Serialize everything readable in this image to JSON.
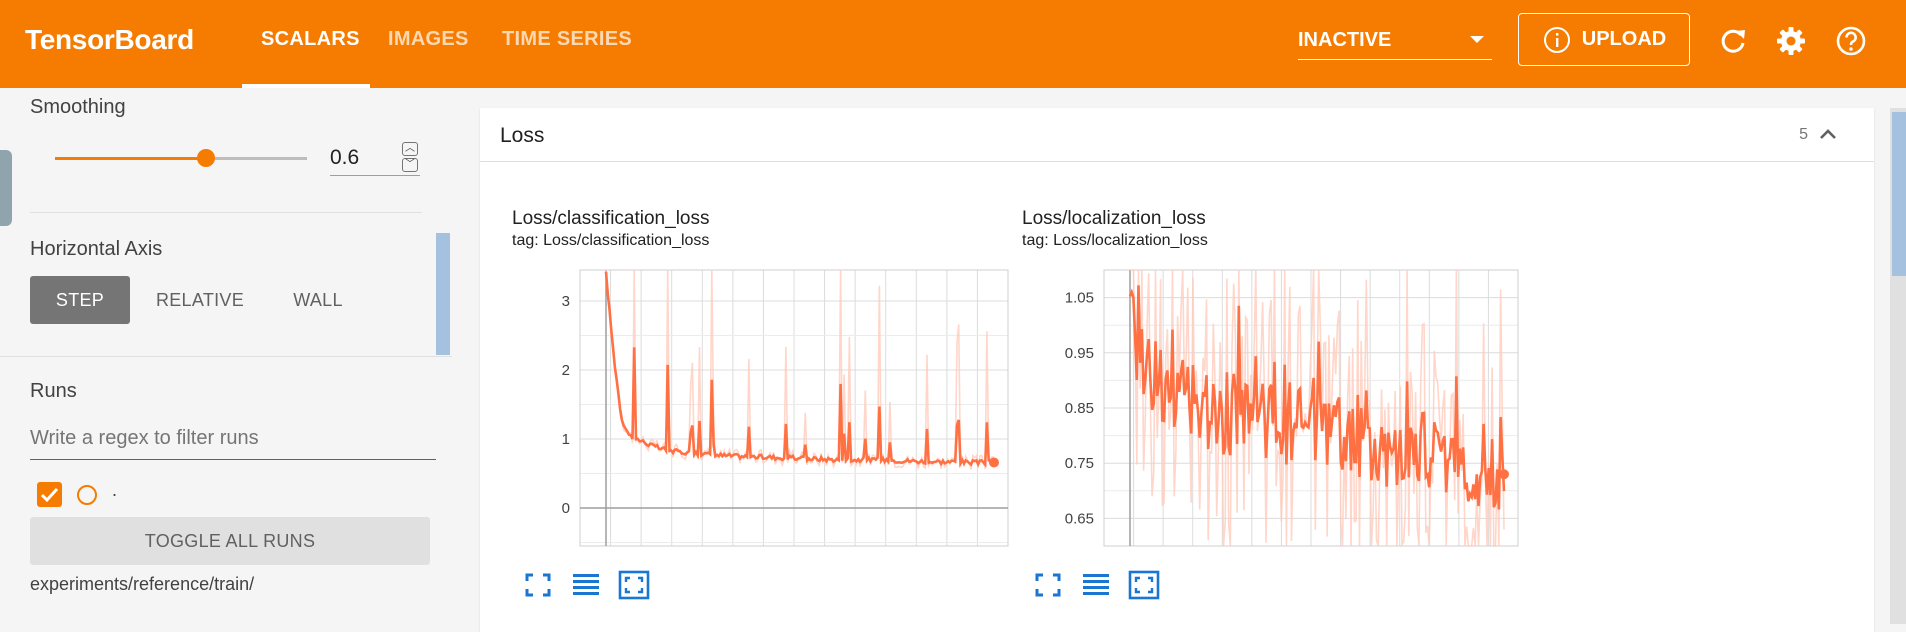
{
  "app": {
    "brand": "TensorBoard"
  },
  "tabs": [
    {
      "label": "SCALARS",
      "active": true
    },
    {
      "label": "IMAGES",
      "active": false
    },
    {
      "label": "TIME SERIES",
      "active": false
    }
  ],
  "header": {
    "run_status": "INACTIVE",
    "upload_label": "UPLOAD",
    "icons": [
      "info-icon",
      "reload-icon",
      "settings-gear-icon",
      "help-icon"
    ]
  },
  "sidebar": {
    "smoothing_label": "Smoothing",
    "smoothing_value": "0.6",
    "smoothing_fraction": 0.6,
    "horizontal_axis_label": "Horizontal Axis",
    "axis_options": [
      {
        "label": "STEP",
        "active": true
      },
      {
        "label": "RELATIVE",
        "active": false
      },
      {
        "label": "WALL",
        "active": false
      }
    ],
    "runs_label": "Runs",
    "runs_filter_placeholder": "Write a regex to filter runs",
    "runs": [
      {
        "name": ".",
        "checked": true
      }
    ],
    "toggle_all_label": "TOGGLE ALL RUNS",
    "run_path": "experiments/reference/train/"
  },
  "main": {
    "group_title": "Loss",
    "group_count": "5"
  },
  "colors": {
    "accent": "#f57c00",
    "series": "#ff7043",
    "series_raw": "#ffccbc",
    "tool_icon": "#1976d2"
  },
  "chart_data": [
    {
      "type": "line",
      "title": "Loss/classification_loss",
      "tag": "tag: Loss/classification_loss",
      "ylim": [
        -0.55,
        3.45
      ],
      "yticks": [
        "3",
        "2",
        "1",
        "0"
      ],
      "ytick_values": [
        3,
        2,
        1,
        0
      ],
      "x": [
        0,
        2,
        4,
        6,
        8,
        10,
        12,
        15,
        18,
        22,
        26,
        30,
        35,
        40,
        45,
        50,
        55,
        60,
        65,
        70,
        75,
        80,
        85,
        90,
        95,
        100
      ],
      "smoothed": [
        3.4,
        2.2,
        1.3,
        1.05,
        1.0,
        0.95,
        0.9,
        0.85,
        0.82,
        0.8,
        0.78,
        0.76,
        0.75,
        0.74,
        0.73,
        0.72,
        0.71,
        0.7,
        0.7,
        0.7,
        0.69,
        0.68,
        0.67,
        0.67,
        0.66,
        0.66
      ],
      "series_name": "."
    },
    {
      "type": "line",
      "title": "Loss/localization_loss",
      "tag": "tag: Loss/localization_loss",
      "ylim": [
        0.6,
        1.1
      ],
      "yticks": [
        "1.05",
        "0.95",
        "0.85",
        "0.75",
        "0.65"
      ],
      "ytick_values": [
        1.05,
        0.95,
        0.85,
        0.75,
        0.65
      ],
      "x": [
        0,
        4,
        8,
        12,
        16,
        20,
        25,
        30,
        35,
        40,
        45,
        50,
        55,
        60,
        65,
        70,
        75,
        80,
        85,
        90,
        95,
        100
      ],
      "smoothed": [
        1.0,
        0.93,
        0.9,
        0.87,
        0.86,
        0.85,
        0.84,
        0.84,
        0.83,
        0.82,
        0.82,
        0.81,
        0.8,
        0.8,
        0.79,
        0.78,
        0.77,
        0.77,
        0.76,
        0.75,
        0.74,
        0.73
      ],
      "series_name": "."
    }
  ]
}
